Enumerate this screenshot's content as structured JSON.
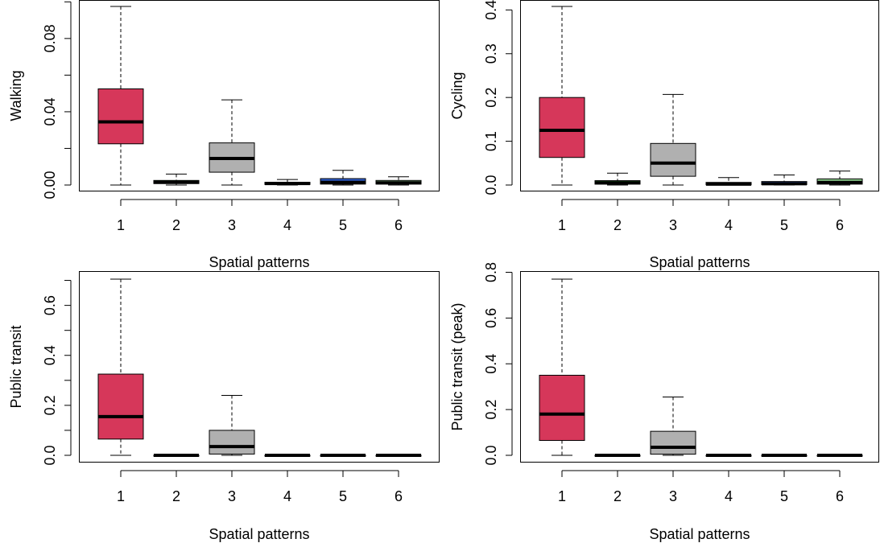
{
  "chart_data": [
    {
      "type": "box",
      "ylabel": "Walking",
      "xlabel": "Spatial patterns",
      "categories": [
        "1",
        "2",
        "3",
        "4",
        "5",
        "6"
      ],
      "ylim": [
        0,
        0.1
      ],
      "yticks": [
        0.0,
        0.02,
        0.04,
        0.06,
        0.08,
        0.1
      ],
      "ytick_labels": [
        "0.00",
        "",
        "0.04",
        "",
        "0.08",
        ""
      ],
      "boxes": [
        {
          "category": "1",
          "whisker_low": 0.0,
          "q1": 0.0225,
          "median": 0.0345,
          "q3": 0.0525,
          "whisker_high": 0.0975,
          "color": "#d6375a"
        },
        {
          "category": "2",
          "whisker_low": 0.0,
          "q1": 0.0008,
          "median": 0.0015,
          "q3": 0.0025,
          "whisker_high": 0.006,
          "color": "#2aa02a"
        },
        {
          "category": "3",
          "whisker_low": 0.0,
          "q1": 0.007,
          "median": 0.0145,
          "q3": 0.023,
          "whisker_high": 0.0465,
          "color": "#b0b0b0"
        },
        {
          "category": "4",
          "whisker_low": 0.0,
          "q1": 0.0003,
          "median": 0.0008,
          "q3": 0.0015,
          "whisker_high": 0.003,
          "color": "#e07070"
        },
        {
          "category": "5",
          "whisker_low": 0.0,
          "q1": 0.0005,
          "median": 0.0015,
          "q3": 0.0035,
          "whisker_high": 0.008,
          "color": "#2f5fd0"
        },
        {
          "category": "6",
          "whisker_low": 0.0,
          "q1": 0.0005,
          "median": 0.0012,
          "q3": 0.0025,
          "whisker_high": 0.0045,
          "color": "#8fd18f"
        }
      ]
    },
    {
      "type": "box",
      "ylabel": "Cycling",
      "xlabel": "Spatial patterns",
      "categories": [
        "1",
        "2",
        "3",
        "4",
        "5",
        "6"
      ],
      "ylim": [
        0,
        0.41
      ],
      "yticks": [
        0.0,
        0.1,
        0.2,
        0.3,
        0.4
      ],
      "ytick_labels": [
        "0.0",
        "0.1",
        "0.2",
        "0.3",
        "0.4"
      ],
      "boxes": [
        {
          "category": "1",
          "whisker_low": 0.0,
          "q1": 0.063,
          "median": 0.125,
          "q3": 0.2,
          "whisker_high": 0.408,
          "color": "#d6375a"
        },
        {
          "category": "2",
          "whisker_low": 0.0,
          "q1": 0.002,
          "median": 0.005,
          "q3": 0.01,
          "whisker_high": 0.027,
          "color": "#2aa02a"
        },
        {
          "category": "3",
          "whisker_low": 0.0,
          "q1": 0.02,
          "median": 0.05,
          "q3": 0.095,
          "whisker_high": 0.207,
          "color": "#b0b0b0"
        },
        {
          "category": "4",
          "whisker_low": 0.0,
          "q1": 0.0005,
          "median": 0.002,
          "q3": 0.006,
          "whisker_high": 0.017,
          "color": "#e07070"
        },
        {
          "category": "5",
          "whisker_low": 0.0,
          "q1": 0.001,
          "median": 0.003,
          "q3": 0.008,
          "whisker_high": 0.023,
          "color": "#2f5fd0"
        },
        {
          "category": "6",
          "whisker_low": 0.0,
          "q1": 0.002,
          "median": 0.006,
          "q3": 0.014,
          "whisker_high": 0.032,
          "color": "#8fd18f"
        }
      ]
    },
    {
      "type": "box",
      "ylabel": "Public transit",
      "xlabel": "Spatial patterns",
      "categories": [
        "1",
        "2",
        "3",
        "4",
        "5",
        "6"
      ],
      "ylim": [
        0,
        0.7
      ],
      "yticks": [
        0.0,
        0.1,
        0.2,
        0.3,
        0.4,
        0.5,
        0.6,
        0.7
      ],
      "ytick_labels": [
        "0.0",
        "",
        "0.2",
        "",
        "0.4",
        "",
        "0.6",
        ""
      ],
      "boxes": [
        {
          "category": "1",
          "whisker_low": 0.0,
          "q1": 0.065,
          "median": 0.155,
          "q3": 0.325,
          "whisker_high": 0.705,
          "color": "#d6375a"
        },
        {
          "category": "2",
          "whisker_low": 0.0,
          "q1": 0.0,
          "median": 0.0,
          "q3": 0.0,
          "whisker_high": 0.0,
          "color": "#2aa02a"
        },
        {
          "category": "3",
          "whisker_low": 0.0,
          "q1": 0.005,
          "median": 0.035,
          "q3": 0.1,
          "whisker_high": 0.24,
          "color": "#b0b0b0"
        },
        {
          "category": "4",
          "whisker_low": 0.0,
          "q1": 0.0,
          "median": 0.0,
          "q3": 0.0,
          "whisker_high": 0.0,
          "color": "#e07070"
        },
        {
          "category": "5",
          "whisker_low": 0.0,
          "q1": 0.0,
          "median": 0.0,
          "q3": 0.0,
          "whisker_high": 0.0,
          "color": "#2f5fd0"
        },
        {
          "category": "6",
          "whisker_low": 0.0,
          "q1": 0.0,
          "median": 0.0,
          "q3": 0.0,
          "whisker_high": 0.0,
          "color": "#8fd18f"
        }
      ]
    },
    {
      "type": "box",
      "ylabel": "Public transit (peak)",
      "xlabel": "Spatial patterns",
      "categories": [
        "1",
        "2",
        "3",
        "4",
        "5",
        "6"
      ],
      "ylim": [
        0,
        0.8
      ],
      "yticks": [
        0.0,
        0.2,
        0.4,
        0.6,
        0.8
      ],
      "ytick_labels": [
        "0.0",
        "0.2",
        "0.4",
        "0.6",
        "0.8"
      ],
      "boxes": [
        {
          "category": "1",
          "whisker_low": 0.0,
          "q1": 0.065,
          "median": 0.18,
          "q3": 0.35,
          "whisker_high": 0.77,
          "color": "#d6375a"
        },
        {
          "category": "2",
          "whisker_low": 0.0,
          "q1": 0.0,
          "median": 0.0,
          "q3": 0.0,
          "whisker_high": 0.0,
          "color": "#2aa02a"
        },
        {
          "category": "3",
          "whisker_low": 0.0,
          "q1": 0.005,
          "median": 0.035,
          "q3": 0.105,
          "whisker_high": 0.255,
          "color": "#b0b0b0"
        },
        {
          "category": "4",
          "whisker_low": 0.0,
          "q1": 0.0,
          "median": 0.0,
          "q3": 0.0,
          "whisker_high": 0.0,
          "color": "#e07070"
        },
        {
          "category": "5",
          "whisker_low": 0.0,
          "q1": 0.0,
          "median": 0.0,
          "q3": 0.0,
          "whisker_high": 0.0,
          "color": "#2f5fd0"
        },
        {
          "category": "6",
          "whisker_low": 0.0,
          "q1": 0.0,
          "median": 0.0,
          "q3": 0.0,
          "whisker_high": 0.0,
          "color": "#8fd18f"
        }
      ]
    }
  ]
}
